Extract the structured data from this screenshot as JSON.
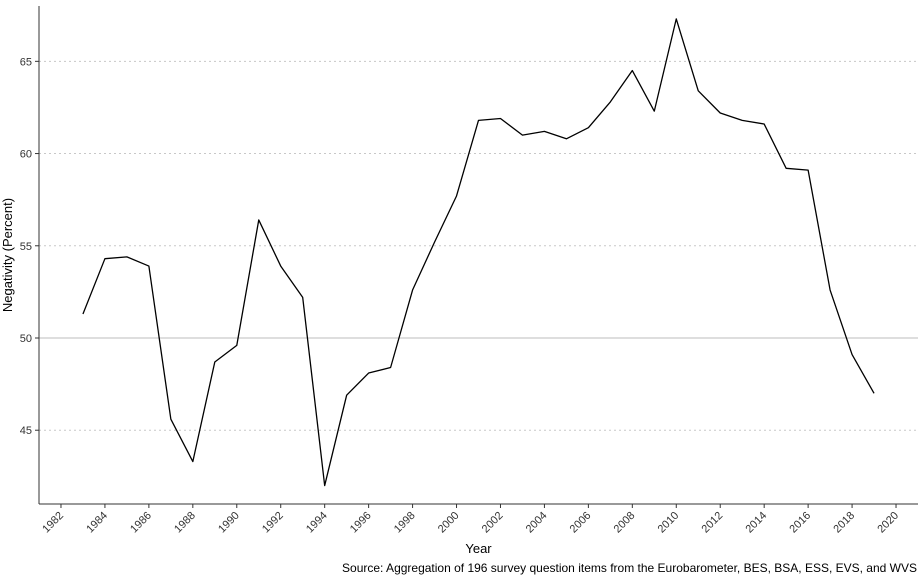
{
  "chart_data": {
    "type": "line",
    "xlabel": "Year",
    "ylabel": "Negativity (Percent)",
    "caption": "Source: Aggregation of 196 survey question items from the Eurobarometer, BES, BSA, ESS, EVS, and WVS",
    "xlim": [
      1981,
      2021
    ],
    "ylim": [
      41,
      68
    ],
    "x_ticks": [
      1982,
      1984,
      1986,
      1988,
      1990,
      1992,
      1994,
      1996,
      1998,
      2000,
      2002,
      2004,
      2006,
      2008,
      2010,
      2012,
      2014,
      2016,
      2018,
      2020
    ],
    "y_ticks": [
      45,
      50,
      55,
      60,
      65
    ],
    "grid": "horizontal dotted",
    "reference_line": 50,
    "line_color": "#000000",
    "series": [
      {
        "x": [
          1983,
          1984,
          1985,
          1986,
          1987,
          1988,
          1989,
          1990,
          1991,
          1992,
          1993,
          1994,
          1995,
          1996,
          1997,
          1998,
          1999,
          2000,
          2001,
          2002,
          2003,
          2004,
          2005,
          2006,
          2007,
          2008,
          2009,
          2010,
          2011,
          2012,
          2013,
          2014,
          2015,
          2016,
          2017,
          2018,
          2019
        ],
        "values": [
          51.3,
          54.3,
          54.4,
          53.9,
          45.6,
          43.3,
          48.7,
          49.6,
          56.4,
          53.9,
          52.2,
          42.0,
          46.9,
          48.1,
          48.4,
          52.6,
          55.2,
          57.7,
          61.8,
          61.9,
          61.0,
          61.2,
          60.8,
          61.4,
          62.8,
          64.5,
          62.3,
          67.3,
          63.4,
          62.2,
          61.8,
          61.6,
          59.2,
          59.1,
          52.6,
          49.1,
          47.0
        ]
      }
    ]
  }
}
